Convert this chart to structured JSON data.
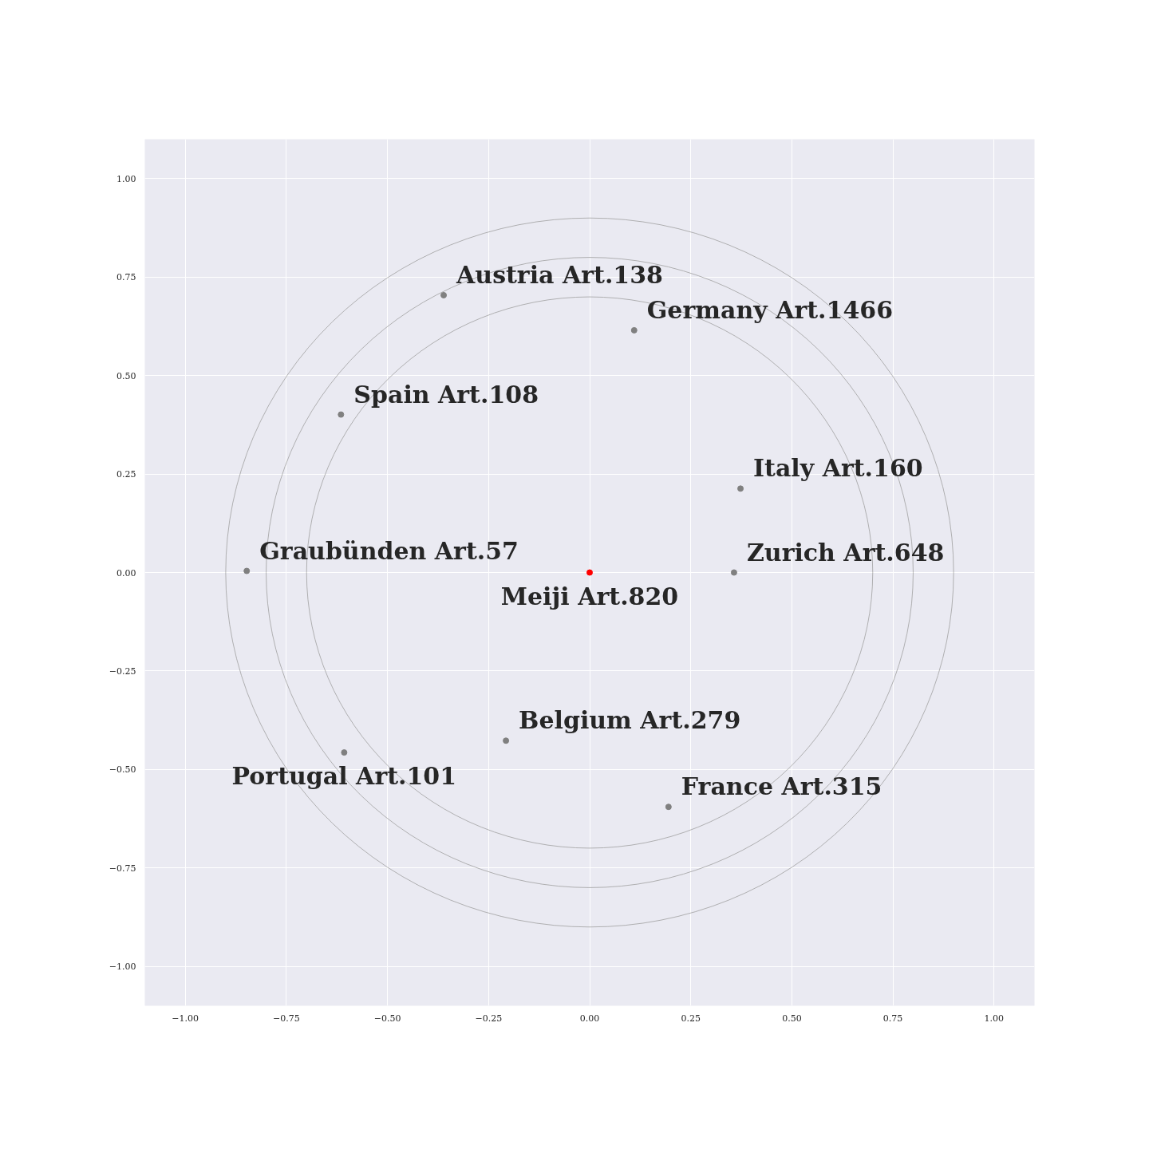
{
  "chart_data": {
    "type": "scatter",
    "xlim": [
      -1.1,
      1.1
    ],
    "ylim": [
      -1.1,
      1.1
    ],
    "xticks": [
      {
        "value": -1,
        "label": "−1.00"
      },
      {
        "value": -0.75,
        "label": "−0.75"
      },
      {
        "value": -0.5,
        "label": "−0.50"
      },
      {
        "value": -0.25,
        "label": "−0.25"
      },
      {
        "value": 0,
        "label": "0.00"
      },
      {
        "value": 0.25,
        "label": "0.25"
      },
      {
        "value": 0.5,
        "label": "0.50"
      },
      {
        "value": 0.75,
        "label": "0.75"
      },
      {
        "value": 1,
        "label": "1.00"
      }
    ],
    "yticks": [
      {
        "value": -1,
        "label": "−1.00"
      },
      {
        "value": -0.75,
        "label": "−0.75"
      },
      {
        "value": -0.5,
        "label": "−0.50"
      },
      {
        "value": -0.25,
        "label": "−0.25"
      },
      {
        "value": 0,
        "label": "0.00"
      },
      {
        "value": 0.25,
        "label": "0.25"
      },
      {
        "value": 0.5,
        "label": "0.50"
      },
      {
        "value": 0.75,
        "label": "0.75"
      },
      {
        "value": 1,
        "label": "1.00"
      }
    ],
    "grid": true,
    "series": [
      {
        "marker": "circle",
        "x": [
          -0.361,
          0.11,
          -0.615,
          0.373,
          -0.848,
          0.357,
          -0.207,
          -0.607,
          0.195,
          0
        ],
        "values": [
          0.704,
          0.615,
          0.401,
          0.213,
          0.004,
          0,
          -0.427,
          -0.457,
          -0.595,
          0
        ],
        "colors": [
          "#808080",
          "#808080",
          "#808080",
          "#808080",
          "#808080",
          "#808080",
          "#808080",
          "#808080",
          "#808080",
          "#ff0000"
        ],
        "value_labels": [
          "Austria Art.138",
          "Germany Art.1466",
          "Spain Art.108",
          "Italy Art.160",
          "Graubünden Art.57",
          "Zurich Art.648",
          "Belgium Art.279",
          "Portugal Art.101",
          "France Art.315",
          "Meiji Art.820"
        ]
      }
    ]
  }
}
